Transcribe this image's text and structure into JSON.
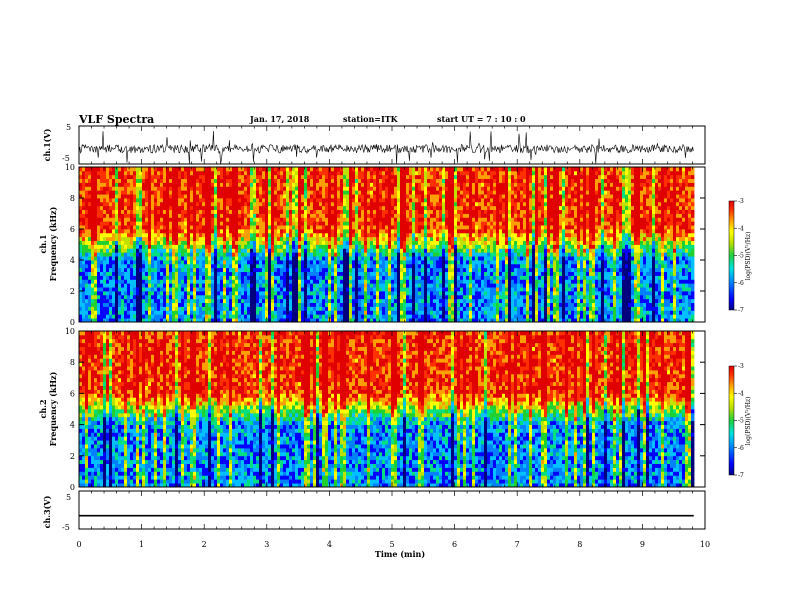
{
  "header": {
    "title": "VLF Spectra",
    "date": "Jan. 17, 2018",
    "station": "station=ITK",
    "start_ut": "start UT =  7 : 10 : 0"
  },
  "colors": {
    "spectrogram_scale": [
      "#00007f",
      "#0000ff",
      "#0080ff",
      "#00c0ff",
      "#00e080",
      "#20d030",
      "#c0e000",
      "#ffff00",
      "#ffa000",
      "#ff3000",
      "#e00000"
    ]
  },
  "chart_data": [
    {
      "type": "line",
      "name": "ch1-waveform",
      "ylabel": "ch.1(V)",
      "ylim": [
        -5,
        5
      ],
      "y_ticklabels": [
        "5",
        "-5"
      ],
      "x_range_min": [
        0,
        9.82
      ],
      "description_of_signal": "noisy waveform centred near -1 V with amplitude bursts"
    },
    {
      "type": "heatmap",
      "name": "ch1-spectrogram",
      "ylabel_line1": "ch.1",
      "ylabel_line2": "Frequency (kHz)",
      "ylim": [
        0,
        10
      ],
      "y_ticklabels": [
        "0",
        "2",
        "4",
        "6",
        "8",
        "10"
      ],
      "x_range_min": [
        0,
        9.82
      ],
      "colorbar": {
        "label": "log(PSD)(V²/Hz)",
        "range": [
          -7,
          -3
        ],
        "ticklabels": [
          "-3",
          "-4",
          "-5",
          "-6",
          "-7"
        ]
      },
      "features": {
        "low_band_kHz": [
          0,
          4
        ],
        "low_band_level": -6,
        "high_band_kHz": [
          6,
          10
        ],
        "high_band_level": -3.5
      }
    },
    {
      "type": "heatmap",
      "name": "ch2-spectrogram",
      "ylabel_line1": "ch.2",
      "ylabel_line2": "Frequency (kHz)",
      "ylim": [
        0,
        10
      ],
      "y_ticklabels": [
        "0",
        "2",
        "4",
        "6",
        "8",
        "10"
      ],
      "x_range_min": [
        0,
        9.82
      ],
      "colorbar": {
        "label": "log(PSD)(V²/Hz)",
        "range": [
          -7,
          -3
        ],
        "ticklabels": [
          "-3",
          "-4",
          "-5",
          "-6",
          "-7"
        ]
      },
      "features": {
        "low_band_kHz": [
          0,
          4
        ],
        "low_band_level": -6,
        "high_band_kHz": [
          6,
          10
        ],
        "high_band_level": -3.5
      }
    },
    {
      "type": "line",
      "name": "ch3-waveform",
      "ylabel": "ch.3(V)",
      "ylim": [
        -5,
        5
      ],
      "y_ticklabels": [
        "5",
        "-5"
      ],
      "x_range_min": [
        0,
        9.82
      ],
      "constant_level": -1.5
    }
  ],
  "xaxis": {
    "label": "Time (min)",
    "xlim": [
      0,
      10
    ],
    "ticklabels": [
      "0",
      "1",
      "2",
      "3",
      "4",
      "5",
      "6",
      "7",
      "8",
      "9",
      "10"
    ]
  }
}
